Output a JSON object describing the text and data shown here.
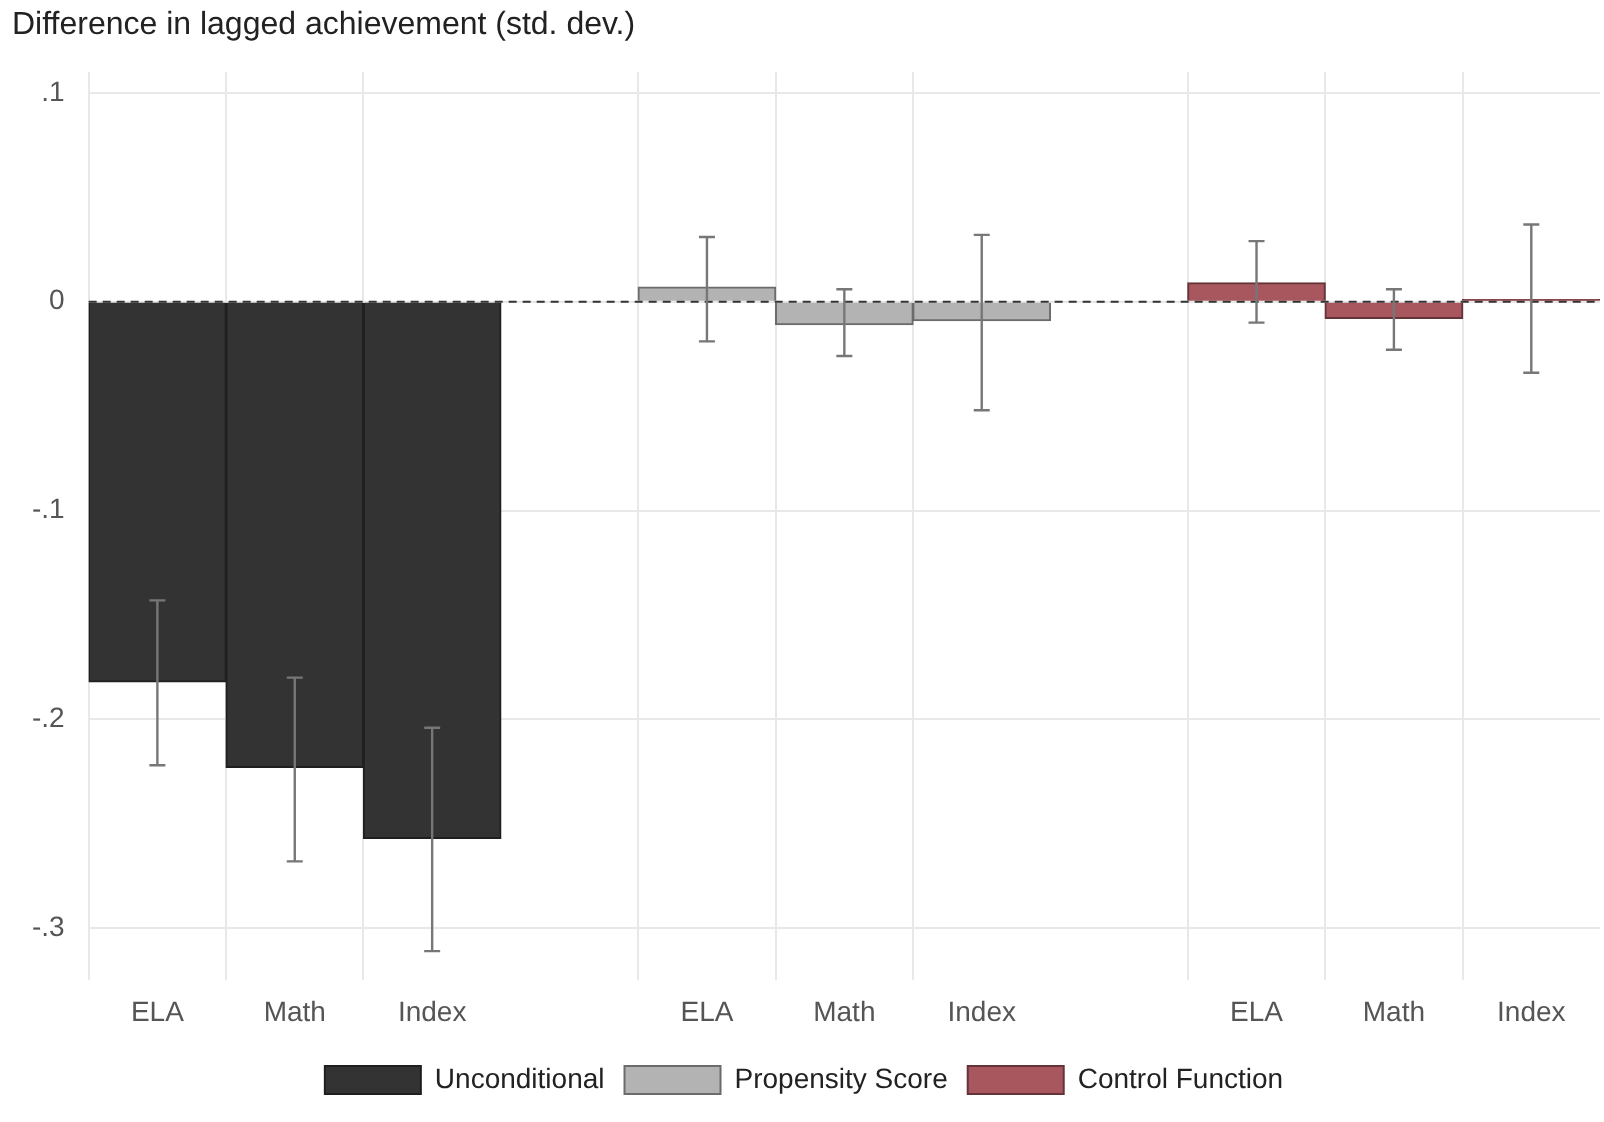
{
  "chart_data": {
    "type": "bar",
    "title": "Difference in lagged achievement (std. dev.)",
    "categories": [
      "ELA",
      "Math",
      "Index",
      null,
      "ELA",
      "Math",
      "Index",
      null,
      "ELA",
      "Math",
      "Index"
    ],
    "series": [
      {
        "name": "Unconditional",
        "color": "#333333",
        "values": [
          -0.182,
          -0.223,
          -0.257,
          null,
          null,
          null,
          null,
          null,
          null,
          null,
          null
        ],
        "errors": [
          [
            -0.222,
            -0.143
          ],
          [
            -0.268,
            -0.18
          ],
          [
            -0.311,
            -0.204
          ],
          null,
          null,
          null,
          null,
          null,
          null,
          null,
          null
        ]
      },
      {
        "name": "Propensity Score",
        "color": "#b3b3b3",
        "values": [
          null,
          null,
          null,
          null,
          0.007,
          -0.011,
          -0.009,
          null,
          null,
          null,
          null
        ],
        "errors": [
          null,
          null,
          null,
          null,
          [
            -0.019,
            0.031
          ],
          [
            -0.026,
            0.006
          ],
          [
            -0.052,
            0.032
          ],
          null,
          null,
          null,
          null
        ]
      },
      {
        "name": "Control Function",
        "color": "#a8575f",
        "values": [
          null,
          null,
          null,
          null,
          null,
          null,
          null,
          null,
          0.009,
          -0.008,
          0.001
        ],
        "errors": [
          null,
          null,
          null,
          null,
          null,
          null,
          null,
          null,
          [
            -0.01,
            0.029
          ],
          [
            -0.023,
            0.006
          ],
          [
            -0.034,
            0.037
          ]
        ]
      }
    ],
    "stacked": true,
    "ylim": [
      -0.325,
      0.11
    ],
    "yticks": [
      {
        "value": 0.1,
        "label": ".1"
      },
      {
        "value": 0,
        "label": "0"
      },
      {
        "value": -0.1,
        "label": "-.1"
      },
      {
        "value": -0.2,
        "label": "-.2"
      },
      {
        "value": -0.3,
        "label": "-.3"
      }
    ],
    "ref_lines": [
      {
        "axis": "y",
        "value": 0,
        "line_style": "dashed",
        "color": "#333333"
      }
    ],
    "grid": true,
    "legend": "bottom"
  }
}
